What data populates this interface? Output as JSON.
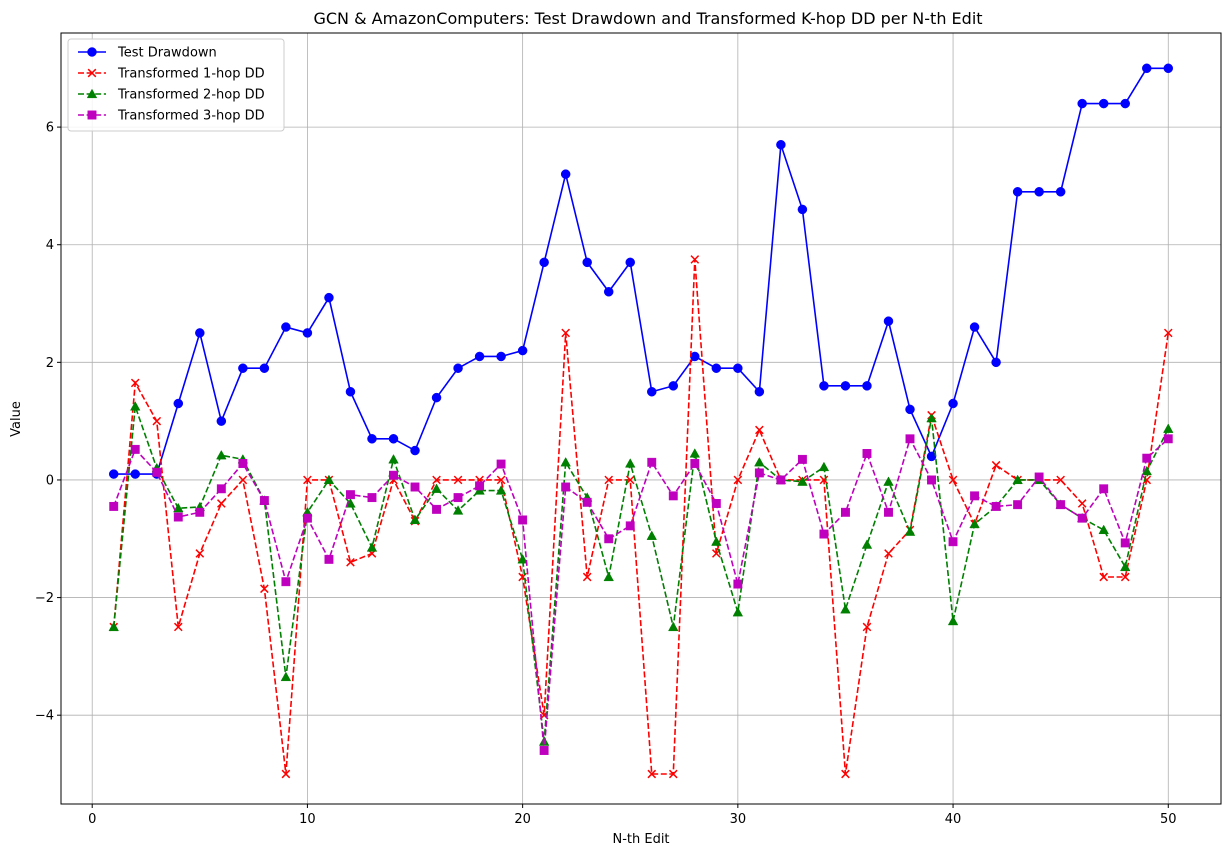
{
  "chart_data": {
    "type": "line",
    "title": "GCN & AmazonComputers: Test Drawdown and Transformed K-hop DD per N-th Edit",
    "xlabel": "N-th Edit",
    "ylabel": "Value",
    "xlim": [
      -1.45,
      52.45
    ],
    "ylim": [
      -5.51,
      7.6
    ],
    "xticks": [
      0,
      10,
      20,
      30,
      40,
      50
    ],
    "yticks": [
      -4,
      -2,
      0,
      2,
      4,
      6
    ],
    "xtick_labels": [
      "0",
      "10",
      "20",
      "30",
      "40",
      "50"
    ],
    "ytick_labels": [
      "−4",
      "−2",
      "0",
      "2",
      "4",
      "6"
    ],
    "grid": true,
    "legend_position": "top-left",
    "x": [
      1,
      2,
      3,
      4,
      5,
      6,
      7,
      8,
      9,
      10,
      11,
      12,
      13,
      14,
      15,
      16,
      17,
      18,
      19,
      20,
      21,
      22,
      23,
      24,
      25,
      26,
      27,
      28,
      29,
      30,
      31,
      32,
      33,
      34,
      35,
      36,
      37,
      38,
      39,
      40,
      41,
      42,
      43,
      44,
      45,
      46,
      47,
      48,
      49,
      50
    ],
    "series": [
      {
        "name": "Test Drawdown",
        "color": "#0000ff",
        "dash": "solid",
        "marker": "circle",
        "values": [
          0.1,
          0.1,
          0.1,
          1.3,
          2.5,
          1.0,
          1.9,
          1.9,
          2.6,
          2.5,
          3.1,
          1.5,
          0.7,
          0.7,
          0.5,
          1.4,
          1.9,
          2.1,
          2.1,
          2.2,
          3.7,
          5.2,
          3.7,
          3.2,
          3.7,
          1.5,
          1.6,
          2.1,
          1.9,
          1.9,
          1.5,
          5.7,
          4.6,
          1.6,
          1.6,
          1.6,
          2.7,
          1.2,
          0.4,
          1.3,
          2.6,
          2.0,
          4.9,
          4.9,
          4.9,
          6.4,
          6.4,
          6.4,
          7.0,
          7.0
        ]
      },
      {
        "name": "Transformed 1-hop DD",
        "color": "#ff0000",
        "dash": "dashed",
        "marker": "x",
        "values": [
          -2.5,
          1.65,
          1.0,
          -2.5,
          -1.25,
          -0.4,
          0.0,
          -1.85,
          -5.0,
          0.0,
          0.0,
          -1.4,
          -1.25,
          0.0,
          -0.7,
          0.0,
          0.0,
          0.0,
          0.0,
          -1.65,
          -4.0,
          2.5,
          -1.65,
          0.0,
          0.0,
          -5.0,
          -5.0,
          3.75,
          -1.25,
          0.0,
          0.85,
          0.0,
          0.0,
          0.0,
          -5.0,
          -2.5,
          -1.25,
          -0.85,
          1.1,
          0.0,
          -0.75,
          0.25,
          0.0,
          0.0,
          0.0,
          -0.4,
          -1.65,
          -1.65,
          0.0,
          2.5
        ]
      },
      {
        "name": "Transformed 2-hop DD",
        "color": "#008000",
        "dash": "dashed",
        "marker": "triangle",
        "values": [
          -2.5,
          1.25,
          0.2,
          -0.48,
          -0.46,
          0.42,
          0.35,
          -0.35,
          -3.35,
          -0.55,
          0.0,
          -0.4,
          -1.15,
          0.35,
          -0.68,
          -0.15,
          -0.52,
          -0.18,
          -0.18,
          -1.35,
          -4.45,
          0.3,
          -0.3,
          -1.65,
          0.28,
          -0.95,
          -2.5,
          0.45,
          -1.05,
          -2.25,
          0.3,
          0.0,
          -0.03,
          0.22,
          -2.2,
          -1.1,
          -0.03,
          -0.88,
          1.05,
          -2.4,
          -0.75,
          -0.45,
          0.0,
          0.0,
          -0.42,
          -0.65,
          -0.85,
          -1.48,
          0.15,
          0.87
        ]
      },
      {
        "name": "Transformed 3-hop DD",
        "color": "#bf00bf",
        "dash": "dashed",
        "marker": "square",
        "values": [
          -0.45,
          0.52,
          0.13,
          -0.63,
          -0.55,
          -0.15,
          0.28,
          -0.35,
          -1.73,
          -0.65,
          -1.35,
          -0.25,
          -0.3,
          0.08,
          -0.12,
          -0.5,
          -0.3,
          -0.1,
          0.27,
          -0.68,
          -4.6,
          -0.12,
          -0.38,
          -1.0,
          -0.78,
          0.3,
          -0.27,
          0.28,
          -0.4,
          -1.77,
          0.12,
          0.0,
          0.35,
          -0.92,
          -0.55,
          0.45,
          -0.55,
          0.7,
          0.0,
          -1.05,
          -0.27,
          -0.45,
          -0.42,
          0.05,
          -0.42,
          -0.65,
          -0.15,
          -1.07,
          0.37,
          0.7
        ]
      }
    ]
  }
}
